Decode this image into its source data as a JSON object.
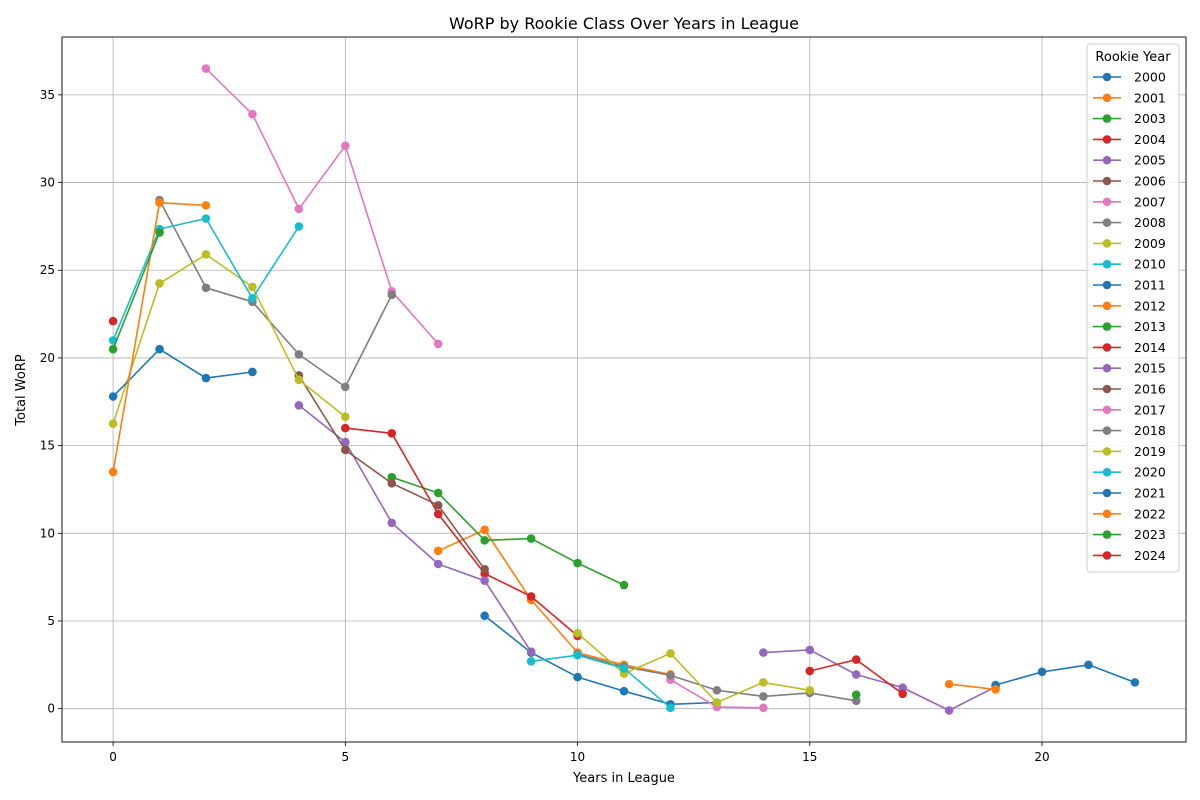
{
  "chart_data": {
    "type": "line",
    "title": "WoRP by Rookie Class Over Years in League",
    "xlabel": "Years in League",
    "ylabel": "Total WoRP",
    "xlim": [
      -1.1,
      23.1
    ],
    "ylim": [
      -1.9,
      38.3
    ],
    "xticks": [
      0,
      5,
      10,
      15,
      20
    ],
    "yticks": [
      0,
      5,
      10,
      15,
      20,
      25,
      30,
      35
    ],
    "grid": true,
    "legend": {
      "title": "Rookie Year",
      "placement": "top-right"
    },
    "palette": [
      "#1f77b4",
      "#ff7f0e",
      "#2ca02c",
      "#d62728",
      "#9467bd",
      "#8c564b",
      "#e377c2",
      "#7f7f7f",
      "#bcbd22",
      "#17becf"
    ],
    "series": [
      {
        "name": "2000",
        "points": [
          [
            8,
            5.3
          ],
          [
            9,
            3.2
          ],
          [
            10,
            1.8
          ],
          [
            11,
            1.0
          ],
          [
            12,
            0.25
          ],
          [
            13,
            0.35
          ]
        ]
      },
      {
        "name": "2001",
        "points": [
          [
            7,
            9.0
          ],
          [
            8,
            10.2
          ],
          [
            9,
            6.2
          ],
          [
            10,
            3.2
          ],
          [
            11,
            2.5
          ],
          [
            12,
            1.95
          ]
        ]
      },
      {
        "name": "2003",
        "points": [
          [
            6,
            13.2
          ],
          [
            7,
            12.3
          ],
          [
            8,
            9.6
          ],
          [
            9,
            9.7
          ],
          [
            10,
            8.3
          ],
          [
            11,
            7.05
          ]
        ]
      },
      {
        "name": "2004",
        "points": [
          [
            5,
            16.0
          ],
          [
            6,
            15.7
          ],
          [
            7,
            11.1
          ],
          [
            8,
            7.7
          ],
          [
            9,
            6.4
          ],
          [
            10,
            4.15
          ]
        ]
      },
      {
        "name": "2005",
        "points": [
          [
            4,
            17.3
          ],
          [
            5,
            15.2
          ],
          [
            6,
            10.6
          ],
          [
            7,
            8.25
          ],
          [
            8,
            7.3
          ],
          [
            9,
            3.25
          ]
        ]
      },
      {
        "name": "2006",
        "points": [
          [
            4,
            19.0
          ],
          [
            5,
            14.75
          ],
          [
            6,
            12.85
          ],
          [
            7,
            11.6
          ],
          [
            8,
            7.95
          ]
        ]
      },
      {
        "name": "2007",
        "points": [
          [
            2,
            36.5
          ],
          [
            3,
            33.9
          ],
          [
            4,
            28.5
          ],
          [
            5,
            32.1
          ],
          [
            6,
            23.8
          ],
          [
            7,
            20.8
          ]
        ]
      },
      {
        "name": "2008",
        "points": [
          [
            1,
            29.0
          ],
          [
            2,
            24.0
          ],
          [
            3,
            23.2
          ],
          [
            4,
            20.2
          ],
          [
            5,
            18.35
          ],
          [
            6,
            23.6
          ]
        ]
      },
      {
        "name": "2009",
        "points": [
          [
            0,
            16.25
          ],
          [
            1,
            24.25
          ],
          [
            2,
            25.9
          ],
          [
            3,
            24.05
          ],
          [
            4,
            18.75
          ],
          [
            5,
            16.65
          ]
        ]
      },
      {
        "name": "2010",
        "points": [
          [
            0,
            21.0
          ],
          [
            1,
            27.35
          ],
          [
            2,
            27.95
          ],
          [
            3,
            23.4
          ],
          [
            4,
            27.5
          ]
        ]
      },
      {
        "name": "2011",
        "points": [
          [
            0,
            17.8
          ],
          [
            1,
            20.5
          ],
          [
            2,
            18.85
          ],
          [
            3,
            19.2
          ]
        ]
      },
      {
        "name": "2012",
        "points": [
          [
            0,
            13.5
          ],
          [
            1,
            28.85
          ],
          [
            2,
            28.7
          ]
        ]
      },
      {
        "name": "2013",
        "points": [
          [
            0,
            20.5
          ],
          [
            1,
            27.15
          ]
        ]
      },
      {
        "name": "2014",
        "points": [
          [
            0,
            22.1
          ]
        ]
      },
      {
        "name": "2015",
        "points": [
          [
            14,
            3.2
          ],
          [
            15,
            3.35
          ],
          [
            16,
            1.95
          ],
          [
            17,
            1.2
          ],
          [
            18,
            -0.1
          ],
          [
            19,
            1.25
          ]
        ]
      },
      {
        "name": "2016",
        "points": []
      },
      {
        "name": "2017",
        "points": [
          [
            12,
            1.65
          ],
          [
            13,
            0.1
          ],
          [
            14,
            0.05
          ]
        ]
      },
      {
        "name": "2018",
        "points": [
          [
            10,
            3.1
          ],
          [
            11,
            2.4
          ],
          [
            12,
            1.9
          ],
          [
            13,
            1.05
          ],
          [
            14,
            0.7
          ],
          [
            15,
            0.9
          ],
          [
            16,
            0.45
          ]
        ]
      },
      {
        "name": "2019",
        "points": [
          [
            10,
            4.3
          ],
          [
            11,
            2.0
          ],
          [
            12,
            3.15
          ],
          [
            13,
            0.35
          ],
          [
            14,
            1.5
          ],
          [
            15,
            1.05
          ]
        ]
      },
      {
        "name": "2020",
        "points": [
          [
            9,
            2.7
          ],
          [
            10,
            3.05
          ],
          [
            11,
            2.3
          ],
          [
            12,
            0.05
          ]
        ]
      },
      {
        "name": "2021",
        "points": [
          [
            19,
            1.35
          ],
          [
            20,
            2.1
          ],
          [
            21,
            2.5
          ],
          [
            22,
            1.5
          ]
        ]
      },
      {
        "name": "2022",
        "points": [
          [
            18,
            1.4
          ],
          [
            19,
            1.1
          ]
        ]
      },
      {
        "name": "2023",
        "points": [
          [
            16,
            0.8
          ]
        ]
      },
      {
        "name": "2024",
        "points": [
          [
            15,
            2.15
          ],
          [
            16,
            2.8
          ],
          [
            17,
            0.85
          ]
        ]
      }
    ]
  }
}
